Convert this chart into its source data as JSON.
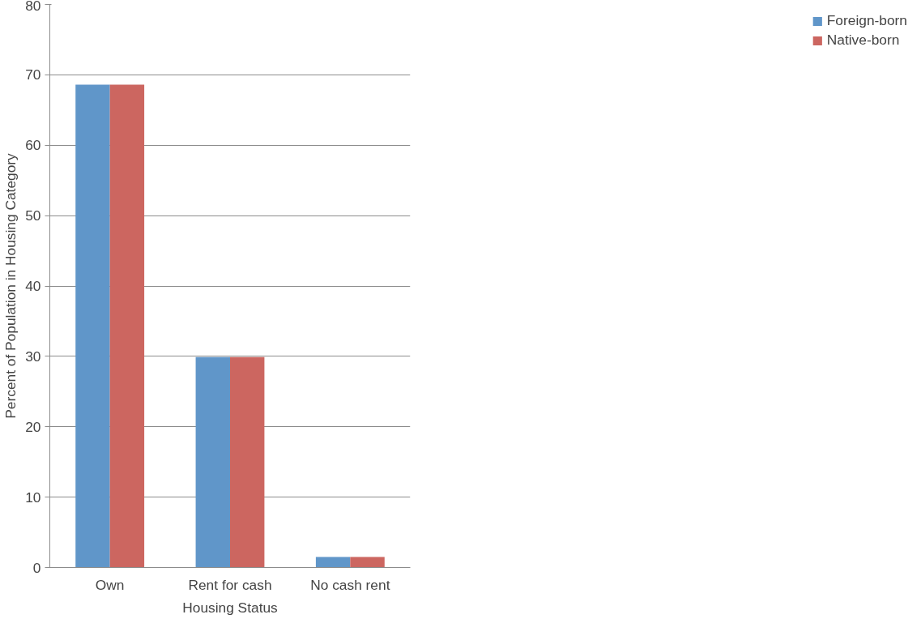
{
  "chart_data": {
    "type": "bar",
    "xlabel": "Housing Status",
    "ylabel": "Percent of Population in Housing Category",
    "categories": [
      "Own",
      "Rent for cash",
      "No cash rent"
    ],
    "series": [
      {
        "name": "Foreign-born",
        "color": "#6096c9",
        "values": [
          68.6,
          29.9,
          1.5
        ]
      },
      {
        "name": "Native-born",
        "color": "#cc6660",
        "values": [
          68.6,
          29.9,
          1.5
        ]
      }
    ],
    "ylim": [
      0,
      80
    ],
    "yticks": [
      0,
      10,
      20,
      30,
      40,
      50,
      60,
      70,
      80
    ],
    "grid": "y",
    "legend": "right"
  }
}
